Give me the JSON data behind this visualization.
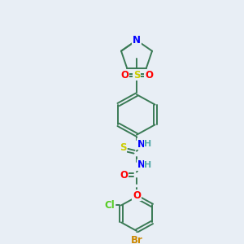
{
  "background_color": "#e8eef5",
  "bond_color": "#3a7a55",
  "atom_colors": {
    "N": "#0000ff",
    "O": "#ff0000",
    "S": "#cccc00",
    "Cl": "#55cc22",
    "Br": "#cc8800",
    "H": "#55aaaa",
    "C": "#3a7a55"
  },
  "figsize": [
    3.0,
    3.0
  ],
  "dpi": 100
}
